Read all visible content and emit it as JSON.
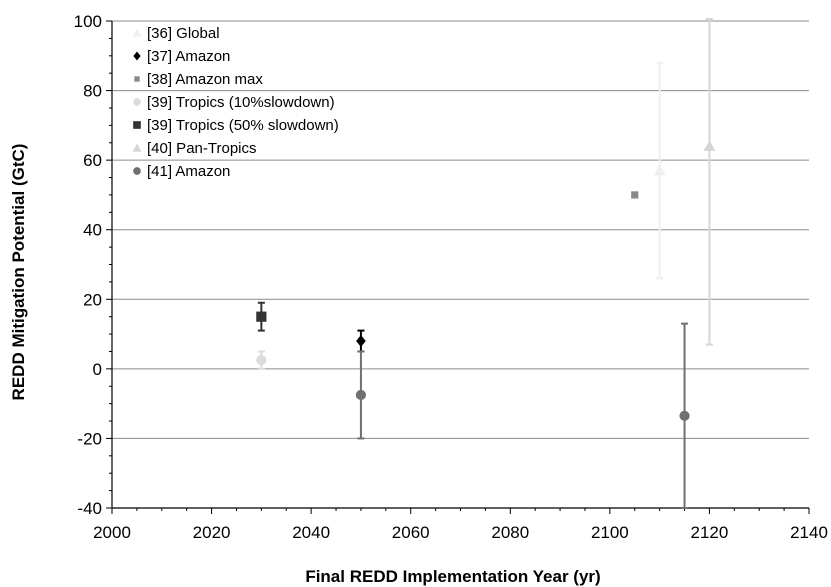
{
  "chart_data": {
    "type": "scatter",
    "xlabel": "Final REDD Implementation Year (yr)",
    "ylabel": "REDD Mitigation Potential (GtC)",
    "xlim": [
      2000,
      2140
    ],
    "ylim": [
      -40,
      100
    ],
    "xticks": [
      2000,
      2020,
      2040,
      2060,
      2080,
      2100,
      2120,
      2140
    ],
    "yticks": [
      -40,
      -20,
      0,
      20,
      40,
      60,
      80,
      100
    ],
    "grid": "horizontal",
    "legend_position": "top-left",
    "series": [
      {
        "name": "[36] Global",
        "marker": "triangle",
        "color": "#efefef",
        "points": [
          {
            "x": 2110,
            "y": 57,
            "ylow": 26,
            "yhigh": 88
          }
        ]
      },
      {
        "name": "[37] Amazon",
        "marker": "diamond",
        "color": "#000000",
        "points": [
          {
            "x": 2050,
            "y": 8,
            "ylow": 5,
            "yhigh": 11
          }
        ]
      },
      {
        "name": "[38] Amazon max",
        "marker": "square-small",
        "color": "#8a8a8a",
        "points": [
          {
            "x": 2105,
            "y": 50
          }
        ]
      },
      {
        "name": "[39] Tropics (10%slowdown)",
        "marker": "circle",
        "color": "#dcdcdc",
        "points": [
          {
            "x": 2030,
            "y": 2.5,
            "ylow": 0,
            "yhigh": 5
          }
        ]
      },
      {
        "name": "[39] Tropics (50% slowdown)",
        "marker": "square",
        "color": "#333333",
        "points": [
          {
            "x": 2030,
            "y": 15,
            "ylow": 11,
            "yhigh": 19
          }
        ]
      },
      {
        "name": "[40] Pan-Tropics",
        "marker": "triangle",
        "color": "#d6d6d6",
        "points": [
          {
            "x": 2120,
            "y": 64,
            "ylow": 7,
            "yhigh": 101
          }
        ]
      },
      {
        "name": "[41] Amazon",
        "marker": "circle",
        "color": "#707070",
        "points": [
          {
            "x": 2050,
            "y": -7.5,
            "ylow": -20,
            "yhigh": 5
          },
          {
            "x": 2115,
            "y": -13.5,
            "ylow": -40,
            "yhigh": 13
          }
        ]
      }
    ]
  }
}
